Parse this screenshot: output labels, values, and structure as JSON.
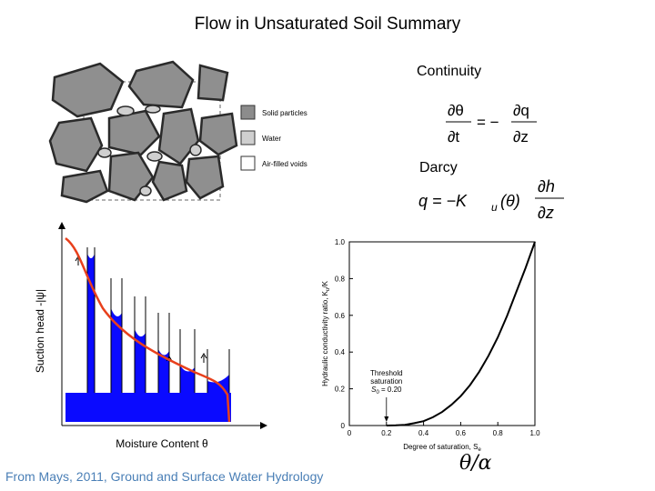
{
  "title": "Flow in Unsaturated Soil Summary",
  "soil_diagram": {
    "legend": [
      {
        "label": "Solid particles",
        "color": "#8c8c8c"
      },
      {
        "label": "Water",
        "color": "#cfcfcf"
      },
      {
        "label": "Air-filled voids",
        "color": "#ffffff"
      }
    ]
  },
  "continuity": {
    "label": "Continuity",
    "lhs_num": "∂θ",
    "lhs_den": "∂t",
    "op": "= −",
    "rhs_num": "∂q",
    "rhs_den": "∂z"
  },
  "darcy": {
    "label": "Darcy",
    "lhs": "q = −K",
    "sub": "u",
    "arg": "(θ)",
    "num": "∂h",
    "den": "∂z"
  },
  "suction_diagram": {
    "ylabel": "Suction head -|ψ|",
    "xlabel": "Moisture Content θ",
    "colors": {
      "water": "#0a0aff",
      "curve": "#e8401c"
    }
  },
  "chart_data": {
    "type": "line",
    "title": "",
    "xlabel": "Degree of saturation, S",
    "xlabel_sub": "e",
    "ylabel": "Hydraulic conductivity ratio, K",
    "ylabel_sub": "u",
    "ylabel_tail": "/K",
    "xlim": [
      0,
      1.0
    ],
    "ylim": [
      0,
      1.0
    ],
    "xticks": [
      "0",
      "0.2",
      "0.4",
      "0.6",
      "0.8",
      "1.0"
    ],
    "yticks": [
      "0",
      "0.2",
      "0.4",
      "0.6",
      "0.8",
      "1.0"
    ],
    "series": [
      {
        "x": [
          0.2,
          0.25,
          0.3,
          0.35,
          0.4,
          0.45,
          0.5,
          0.55,
          0.6,
          0.65,
          0.7,
          0.75,
          0.8,
          0.85,
          0.9,
          0.95,
          1.0
        ],
        "y": [
          0.0,
          0.001,
          0.004,
          0.013,
          0.024,
          0.045,
          0.074,
          0.113,
          0.16,
          0.22,
          0.293,
          0.38,
          0.48,
          0.597,
          0.728,
          0.859,
          1.0
        ]
      }
    ],
    "annotation": {
      "line1": "Threshold",
      "line2": "saturation",
      "line3_var": "S",
      "line3_sub": "0",
      "line3_val": " = 0.20",
      "x": 0.2
    }
  },
  "theta_alpha": "θ/α",
  "footer": "From Mays, 2011, Ground and Surface Water Hydrology"
}
